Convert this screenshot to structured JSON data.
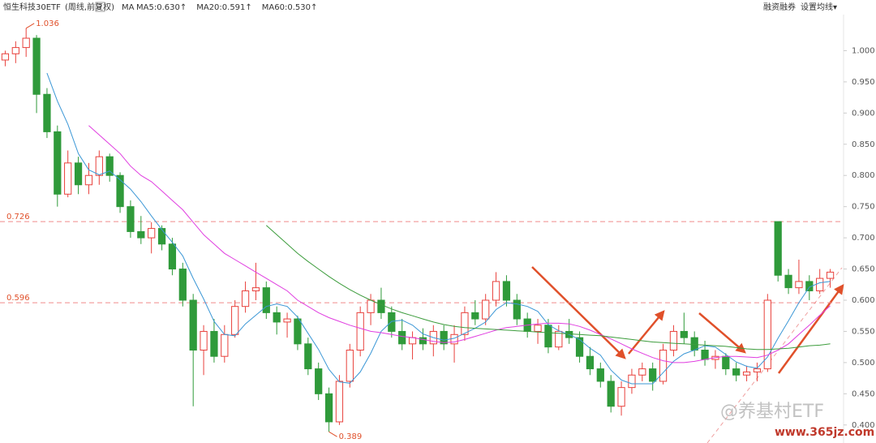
{
  "chart_data": {
    "type": "candlestick",
    "header": {
      "title": "恒生科技30ETF",
      "subtitle": "(周线,前复权)",
      "help": "?",
      "ma_label": "MA",
      "buttons": [
        "融资融券",
        "设置均线▾"
      ]
    },
    "up_color": "#e8413c",
    "down_color": "#2f9a3a",
    "open": [
      0.985,
      0.995,
      1.005,
      1.02,
      0.93,
      0.87,
      0.77,
      0.82,
      0.785,
      0.8,
      0.83,
      0.8,
      0.75,
      0.71,
      0.7,
      0.715,
      0.69,
      0.65,
      0.6,
      0.52,
      0.55,
      0.51,
      0.545,
      0.59,
      0.615,
      0.62,
      0.58,
      0.565,
      0.57,
      0.53,
      0.49,
      0.45,
      0.405,
      0.47,
      0.52,
      0.58,
      0.6,
      0.58,
      0.55,
      0.53,
      0.54,
      0.53,
      0.55,
      0.53,
      0.545,
      0.58,
      0.57,
      0.6,
      0.63,
      0.6,
      0.57,
      0.55,
      0.56,
      0.525,
      0.55,
      0.54,
      0.51,
      0.49,
      0.47,
      0.43,
      0.46,
      0.48,
      0.49,
      0.47,
      0.52,
      0.55,
      0.54,
      0.52,
      0.505,
      0.51,
      0.49,
      0.48,
      0.485,
      0.49,
      0.726,
      0.64,
      0.62,
      0.63,
      0.615,
      0.635
    ],
    "high": [
      1.0,
      1.015,
      1.036,
      1.025,
      0.94,
      0.88,
      0.84,
      0.83,
      0.82,
      0.84,
      0.835,
      0.805,
      0.76,
      0.735,
      0.725,
      0.72,
      0.7,
      0.66,
      0.61,
      0.56,
      0.57,
      0.56,
      0.6,
      0.63,
      0.66,
      0.63,
      0.59,
      0.58,
      0.575,
      0.54,
      0.5,
      0.46,
      0.48,
      0.53,
      0.59,
      0.61,
      0.62,
      0.59,
      0.57,
      0.55,
      0.555,
      0.56,
      0.56,
      0.56,
      0.59,
      0.6,
      0.61,
      0.645,
      0.64,
      0.61,
      0.58,
      0.57,
      0.57,
      0.56,
      0.57,
      0.55,
      0.525,
      0.5,
      0.48,
      0.47,
      0.49,
      0.5,
      0.5,
      0.53,
      0.56,
      0.58,
      0.55,
      0.535,
      0.52,
      0.515,
      0.5,
      0.495,
      0.5,
      0.61,
      0.726,
      0.65,
      0.665,
      0.64,
      0.65,
      0.65
    ],
    "low": [
      0.975,
      0.98,
      0.99,
      0.9,
      0.86,
      0.75,
      0.765,
      0.77,
      0.77,
      0.785,
      0.79,
      0.74,
      0.7,
      0.69,
      0.675,
      0.68,
      0.64,
      0.59,
      0.43,
      0.48,
      0.5,
      0.5,
      0.54,
      0.58,
      0.6,
      0.57,
      0.545,
      0.54,
      0.52,
      0.48,
      0.44,
      0.389,
      0.4,
      0.46,
      0.51,
      0.56,
      0.57,
      0.54,
      0.52,
      0.505,
      0.52,
      0.51,
      0.52,
      0.5,
      0.535,
      0.56,
      0.56,
      0.59,
      0.59,
      0.56,
      0.54,
      0.53,
      0.515,
      0.52,
      0.53,
      0.5,
      0.48,
      0.46,
      0.42,
      0.415,
      0.45,
      0.47,
      0.455,
      0.465,
      0.51,
      0.53,
      0.51,
      0.495,
      0.49,
      0.48,
      0.47,
      0.47,
      0.47,
      0.485,
      0.63,
      0.61,
      0.61,
      0.6,
      0.61,
      0.62
    ],
    "close": [
      0.995,
      1.005,
      1.02,
      0.93,
      0.87,
      0.77,
      0.82,
      0.785,
      0.8,
      0.83,
      0.8,
      0.75,
      0.71,
      0.7,
      0.715,
      0.69,
      0.65,
      0.6,
      0.52,
      0.55,
      0.51,
      0.545,
      0.59,
      0.615,
      0.62,
      0.58,
      0.565,
      0.57,
      0.53,
      0.49,
      0.45,
      0.405,
      0.47,
      0.52,
      0.58,
      0.6,
      0.58,
      0.55,
      0.53,
      0.54,
      0.53,
      0.55,
      0.53,
      0.545,
      0.58,
      0.57,
      0.6,
      0.63,
      0.6,
      0.57,
      0.55,
      0.56,
      0.525,
      0.55,
      0.54,
      0.51,
      0.49,
      0.47,
      0.43,
      0.46,
      0.48,
      0.49,
      0.47,
      0.52,
      0.55,
      0.54,
      0.52,
      0.505,
      0.51,
      0.49,
      0.48,
      0.485,
      0.49,
      0.6,
      0.64,
      0.62,
      0.63,
      0.615,
      0.635,
      0.645
    ],
    "series": [
      {
        "name": "MA5:0.630↑",
        "color": "#3b97d6",
        "values": [
          null,
          null,
          null,
          null,
          0.964,
          0.919,
          0.882,
          0.835,
          0.809,
          0.801,
          0.807,
          0.793,
          0.778,
          0.758,
          0.735,
          0.713,
          0.693,
          0.671,
          0.635,
          0.602,
          0.566,
          0.545,
          0.543,
          0.562,
          0.576,
          0.59,
          0.594,
          0.59,
          0.573,
          0.547,
          0.521,
          0.489,
          0.469,
          0.467,
          0.485,
          0.515,
          0.55,
          0.566,
          0.568,
          0.56,
          0.546,
          0.54,
          0.536,
          0.539,
          0.547,
          0.555,
          0.565,
          0.585,
          0.596,
          0.594,
          0.59,
          0.582,
          0.561,
          0.551,
          0.545,
          0.537,
          0.523,
          0.512,
          0.488,
          0.472,
          0.466,
          0.466,
          0.466,
          0.484,
          0.502,
          0.514,
          0.52,
          0.527,
          0.525,
          0.513,
          0.501,
          0.494,
          0.491,
          0.509,
          0.539,
          0.567,
          0.596,
          0.621,
          0.628,
          0.63
        ]
      },
      {
        "name": "MA20:0.591↑",
        "color": "#e03ee0",
        "values": [
          null,
          null,
          null,
          null,
          null,
          null,
          null,
          null,
          0.88,
          0.865,
          0.85,
          0.835,
          0.815,
          0.8,
          0.79,
          0.775,
          0.76,
          0.745,
          0.725,
          0.705,
          0.69,
          0.675,
          0.665,
          0.655,
          0.645,
          0.635,
          0.625,
          0.615,
          0.6,
          0.59,
          0.58,
          0.572,
          0.566,
          0.56,
          0.555,
          0.55,
          0.548,
          0.545,
          0.542,
          0.54,
          0.537,
          0.534,
          0.532,
          0.533,
          0.537,
          0.542,
          0.547,
          0.552,
          0.556,
          0.558,
          0.56,
          0.562,
          0.563,
          0.563,
          0.562,
          0.558,
          0.552,
          0.545,
          0.538,
          0.53,
          0.522,
          0.515,
          0.508,
          0.503,
          0.5,
          0.5,
          0.502,
          0.505,
          0.508,
          0.51,
          0.51,
          0.509,
          0.508,
          0.512,
          0.52,
          0.53,
          0.545,
          0.56,
          0.576,
          0.591
        ]
      },
      {
        "name": "MA60:0.530↑",
        "color": "#3c9c3c",
        "values": [
          null,
          null,
          null,
          null,
          null,
          null,
          null,
          null,
          null,
          null,
          null,
          null,
          null,
          null,
          null,
          null,
          null,
          null,
          null,
          null,
          null,
          null,
          null,
          null,
          null,
          0.72,
          0.705,
          0.69,
          0.675,
          0.662,
          0.65,
          0.638,
          0.627,
          0.617,
          0.608,
          0.6,
          0.593,
          0.586,
          0.58,
          0.575,
          0.57,
          0.565,
          0.561,
          0.558,
          0.556,
          0.555,
          0.554,
          0.553,
          0.552,
          0.551,
          0.55,
          0.549,
          0.548,
          0.547,
          0.546,
          0.545,
          0.544,
          0.543,
          0.541,
          0.539,
          0.537,
          0.535,
          0.533,
          0.532,
          0.531,
          0.53,
          0.529,
          0.528,
          0.527,
          0.526,
          0.524,
          0.522,
          0.521,
          0.521,
          0.522,
          0.523,
          0.525,
          0.527,
          0.528,
          0.53
        ]
      }
    ],
    "ylim": [
      0.375,
      1.05
    ],
    "yticks": [
      {
        "value": 0.4,
        "label": "0.400"
      },
      {
        "value": 0.45,
        "label": "0.450"
      },
      {
        "value": 0.5,
        "label": "0.500"
      },
      {
        "value": 0.55,
        "label": "0.550"
      },
      {
        "value": 0.6,
        "label": "0.600"
      },
      {
        "value": 0.65,
        "label": "0.650"
      },
      {
        "value": 0.7,
        "label": "0.700"
      },
      {
        "value": 0.75,
        "label": "0.750"
      },
      {
        "value": 0.8,
        "label": "0.800"
      },
      {
        "value": 0.85,
        "label": "0.850"
      },
      {
        "value": 0.9,
        "label": "0.900"
      },
      {
        "value": 0.95,
        "label": "0.950"
      },
      {
        "value": 1.0,
        "label": "1.000"
      }
    ],
    "reference_lines": [
      {
        "value": 0.726,
        "label": "0.726"
      },
      {
        "value": 0.596,
        "label": "0.596"
      }
    ],
    "extremes": [
      {
        "value": 1.036,
        "label": "1.036",
        "index": 2
      },
      {
        "value": 0.389,
        "label": "0.389",
        "index": 31
      }
    ],
    "watermark": {
      "text": "@养基村ETF",
      "url": "www.365jz.com"
    }
  }
}
